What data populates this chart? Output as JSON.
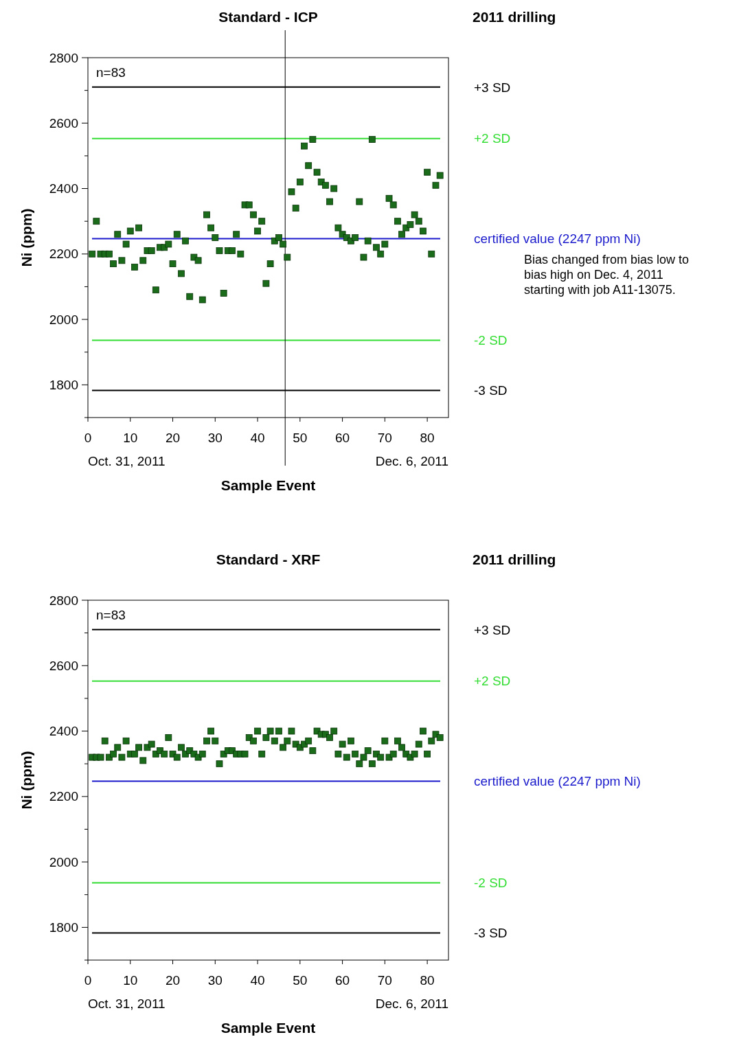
{
  "chart_data": [
    {
      "type": "scatter",
      "title": "Standard - ICP",
      "xlabel": "Sample Event",
      "ylabel": "Ni (ppm)",
      "xlim": [
        0,
        85
      ],
      "xticks": [
        0,
        10,
        20,
        30,
        40,
        50,
        60,
        70,
        80
      ],
      "ylim": [
        1700,
        2800
      ],
      "yticks": [
        {
          "value": 1700,
          "label": null
        },
        1800,
        {
          "value": 1900,
          "label": null
        },
        2000,
        {
          "value": 2100,
          "label": null
        },
        2200,
        {
          "value": 2300,
          "label": null
        },
        2400,
        {
          "value": 2500,
          "label": null
        },
        2600,
        {
          "value": 2700,
          "label": null
        },
        2800
      ],
      "marker": "square",
      "grid": false,
      "series": [
        {
          "color": "#1a6b1a",
          "x": [
            1,
            2,
            3,
            4,
            5,
            6,
            7,
            8,
            9,
            10,
            11,
            12,
            13,
            14,
            15,
            16,
            17,
            18,
            19,
            20,
            21,
            22,
            23,
            24,
            25,
            26,
            27,
            28,
            29,
            30,
            31,
            32,
            33,
            34,
            35,
            36,
            37,
            38,
            39,
            40,
            41,
            42,
            43,
            44,
            45,
            46,
            47,
            48,
            49,
            50,
            51,
            52,
            53,
            54,
            55,
            56,
            57,
            58,
            59,
            60,
            61,
            62,
            63,
            64,
            65,
            66,
            67,
            68,
            69,
            70,
            71,
            72,
            73,
            74,
            75,
            76,
            77,
            78,
            79,
            80,
            81,
            82,
            83
          ],
          "values": [
            2200,
            2300,
            2200,
            2200,
            2200,
            2170,
            2260,
            2180,
            2230,
            2270,
            2160,
            2280,
            2180,
            2210,
            2210,
            2090,
            2220,
            2220,
            2230,
            2170,
            2260,
            2140,
            2240,
            2070,
            2190,
            2180,
            2060,
            2320,
            2280,
            2250,
            2210,
            2080,
            2210,
            2210,
            2260,
            2200,
            2350,
            2350,
            2320,
            2270,
            2300,
            2110,
            2170,
            2240,
            2250,
            2230,
            2190,
            2390,
            2340,
            2420,
            2530,
            2470,
            2550,
            2450,
            2420,
            2410,
            2360,
            2400,
            2280,
            2260,
            2250,
            2240,
            2250,
            2360,
            2190,
            2240,
            2550,
            2220,
            2200,
            2230,
            2370,
            2350,
            2300,
            2260,
            2280,
            2290,
            2320,
            2300,
            2270,
            2450,
            2200,
            2410,
            2440
          ]
        }
      ],
      "ref_lines": [
        {
          "axis": "y",
          "value": 2710,
          "label": "+3 SD",
          "color": "#000000"
        },
        {
          "axis": "y",
          "value": 2553,
          "label": "+2 SD",
          "color": "#33dd33"
        },
        {
          "axis": "y",
          "value": 2247,
          "label": "certified value (2247 ppm Ni)",
          "color": "#1a1acc"
        },
        {
          "axis": "y",
          "value": 1936,
          "label": "-2 SD",
          "color": "#33dd33"
        },
        {
          "axis": "y",
          "value": 1783,
          "label": "-3 SD",
          "color": "#000000"
        },
        {
          "axis": "x",
          "value": 46.5,
          "color": "#000000"
        }
      ],
      "annotations": [
        "n=83",
        "Oct. 31, 2011",
        "Dec. 6, 2011",
        "2011 drilling",
        "Bias changed from bias low to bias high on Dec. 4, 2011 starting with job A11-13075."
      ]
    },
    {
      "type": "scatter",
      "title": "Standard - XRF",
      "xlabel": "Sample Event",
      "ylabel": "Ni (ppm)",
      "xlim": [
        0,
        85
      ],
      "xticks": [
        0,
        10,
        20,
        30,
        40,
        50,
        60,
        70,
        80
      ],
      "ylim": [
        1700,
        2800
      ],
      "yticks": [
        {
          "value": 1700,
          "label": null
        },
        1800,
        {
          "value": 1900,
          "label": null
        },
        2000,
        {
          "value": 2100,
          "label": null
        },
        2200,
        {
          "value": 2300,
          "label": null
        },
        2400,
        {
          "value": 2500,
          "label": null
        },
        2600,
        {
          "value": 2700,
          "label": null
        },
        2800
      ],
      "marker": "square",
      "grid": false,
      "series": [
        {
          "color": "#1a6b1a",
          "x": [
            1,
            2,
            3,
            4,
            5,
            6,
            7,
            8,
            9,
            10,
            11,
            12,
            13,
            14,
            15,
            16,
            17,
            18,
            19,
            20,
            21,
            22,
            23,
            24,
            25,
            26,
            27,
            28,
            29,
            30,
            31,
            32,
            33,
            34,
            35,
            36,
            37,
            38,
            39,
            40,
            41,
            42,
            43,
            44,
            45,
            46,
            47,
            48,
            49,
            50,
            51,
            52,
            53,
            54,
            55,
            56,
            57,
            58,
            59,
            60,
            61,
            62,
            63,
            64,
            65,
            66,
            67,
            68,
            69,
            70,
            71,
            72,
            73,
            74,
            75,
            76,
            77,
            78,
            79,
            80,
            81,
            82,
            83
          ],
          "values": [
            2320,
            2320,
            2320,
            2370,
            2320,
            2330,
            2350,
            2320,
            2370,
            2330,
            2330,
            2350,
            2310,
            2350,
            2360,
            2330,
            2340,
            2330,
            2380,
            2330,
            2320,
            2350,
            2330,
            2340,
            2330,
            2320,
            2330,
            2370,
            2400,
            2370,
            2300,
            2330,
            2340,
            2340,
            2330,
            2330,
            2330,
            2380,
            2370,
            2400,
            2330,
            2380,
            2400,
            2370,
            2400,
            2350,
            2370,
            2400,
            2360,
            2350,
            2360,
            2370,
            2340,
            2400,
            2390,
            2390,
            2380,
            2400,
            2330,
            2360,
            2320,
            2370,
            2330,
            2300,
            2320,
            2340,
            2300,
            2330,
            2320,
            2370,
            2320,
            2330,
            2370,
            2350,
            2330,
            2320,
            2330,
            2360,
            2400,
            2330,
            2370,
            2390,
            2380
          ]
        }
      ],
      "ref_lines": [
        {
          "axis": "y",
          "value": 2710,
          "label": "+3 SD",
          "color": "#000000"
        },
        {
          "axis": "y",
          "value": 2553,
          "label": "+2 SD",
          "color": "#33dd33"
        },
        {
          "axis": "y",
          "value": 2247,
          "label": "certified value (2247 ppm Ni)",
          "color": "#1a1acc"
        },
        {
          "axis": "y",
          "value": 1936,
          "label": "-2 SD",
          "color": "#33dd33"
        },
        {
          "axis": "y",
          "value": 1783,
          "label": "-3 SD",
          "color": "#000000"
        }
      ],
      "annotations": [
        "n=83",
        "Oct. 31, 2011",
        "Dec. 6, 2011",
        "2011 drilling"
      ]
    }
  ]
}
